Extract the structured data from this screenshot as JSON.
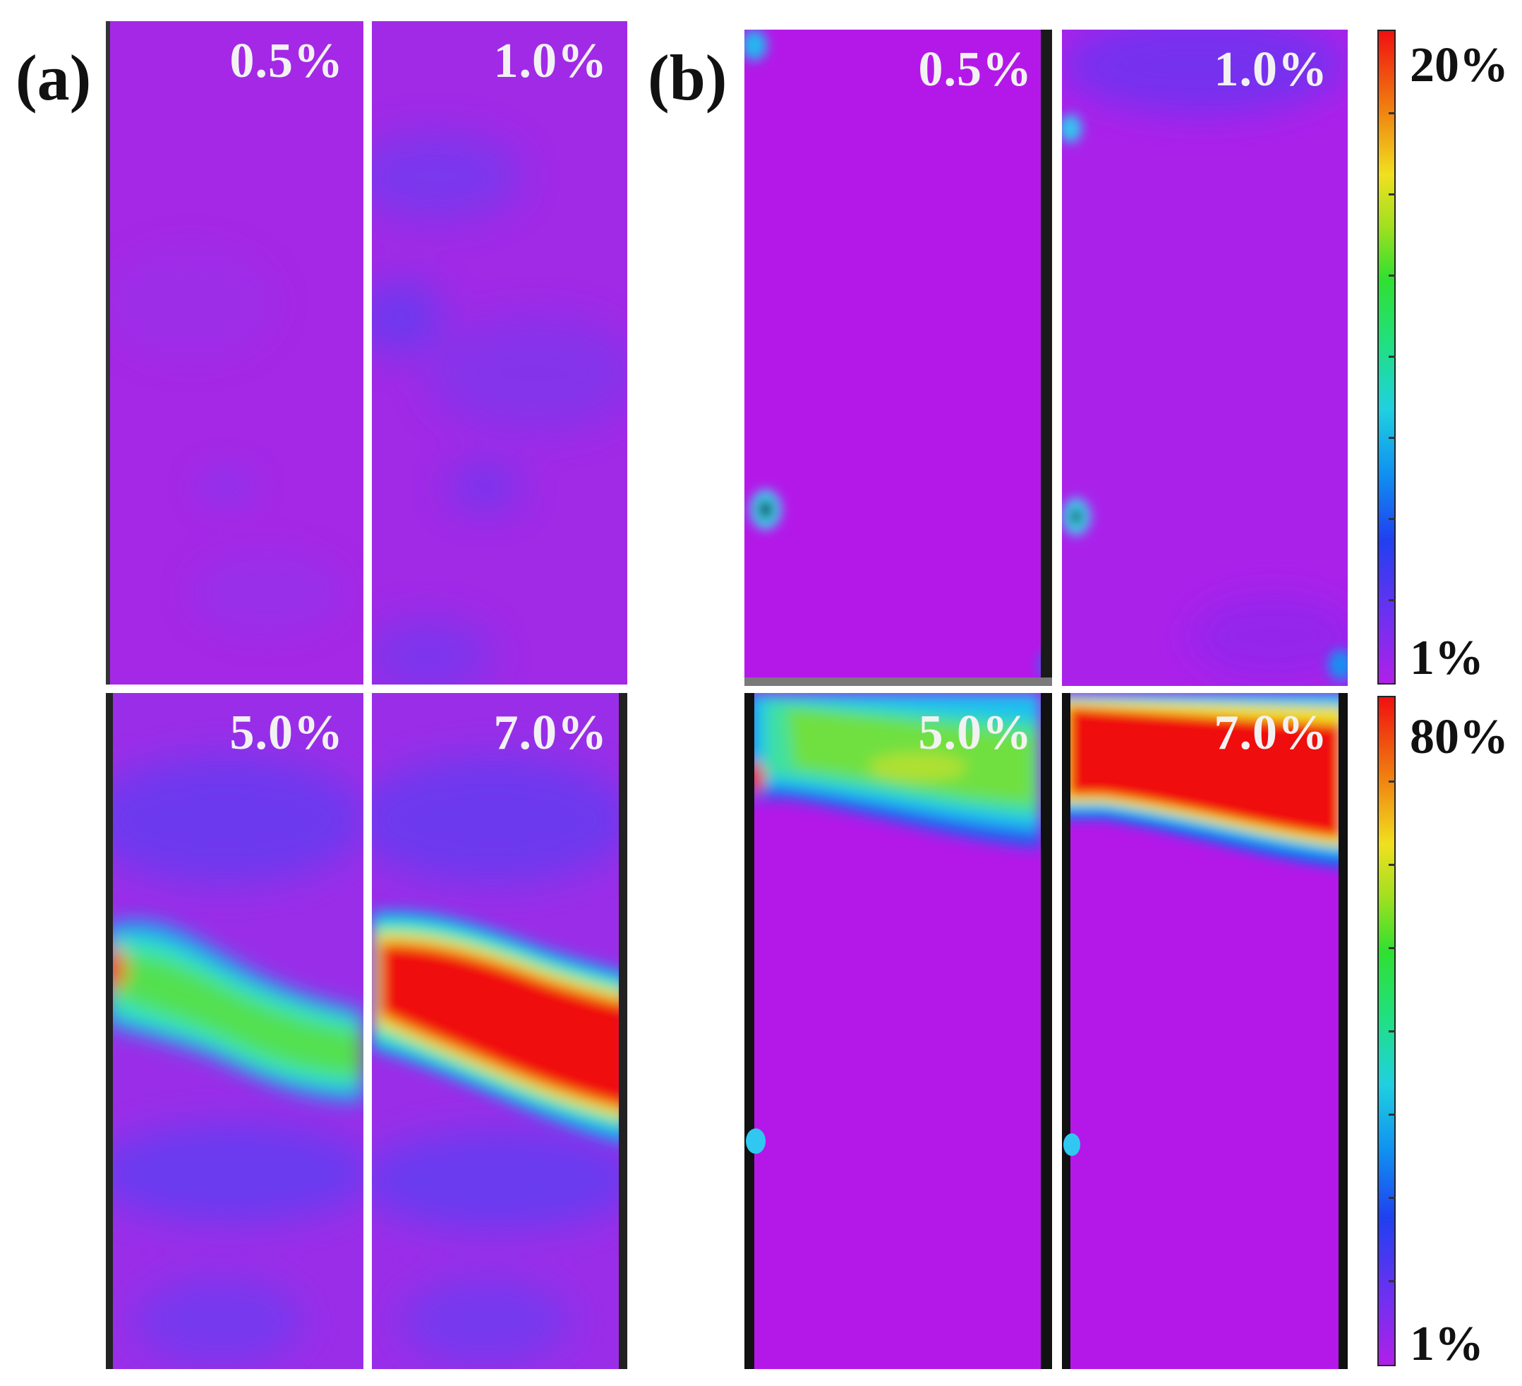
{
  "figure": {
    "panel_a_label": "(a)",
    "panel_b_label": "(b)",
    "panel_a": {
      "tiles": [
        {
          "strain": "0.5%"
        },
        {
          "strain": "1.0%"
        },
        {
          "strain": "5.0%"
        },
        {
          "strain": "7.0%"
        }
      ]
    },
    "panel_b": {
      "tiles": [
        {
          "strain": "0.5%"
        },
        {
          "strain": "1.0%"
        },
        {
          "strain": "5.0%"
        },
        {
          "strain": "7.0%"
        }
      ]
    },
    "colorbar_top": {
      "max_label": "20%",
      "min_label": "1%"
    },
    "colorbar_bottom": {
      "max_label": "80%",
      "min_label": "1%"
    }
  }
}
